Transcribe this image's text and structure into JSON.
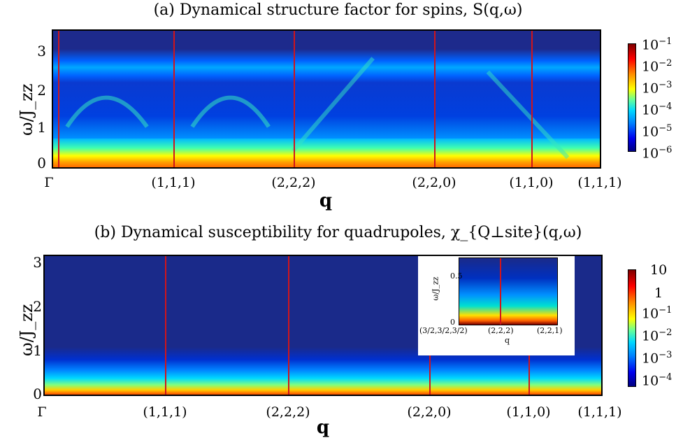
{
  "chart_data": [
    {
      "type": "heatmap",
      "title": "(a) Dynamical structure factor for spins, S(q,ω)",
      "xlabel": "q",
      "ylabel": "ω/J_zz",
      "x_ticks": [
        "Γ",
        "(1,1,1)",
        "(2,2,2)",
        "(2,2,0)",
        "(1,1,0)",
        "(1,1,1)"
      ],
      "y_ticks": [
        "0",
        "1",
        "2",
        "3"
      ],
      "ylim": [
        0,
        3.6
      ],
      "colorbar": {
        "scale": "log",
        "ticks": [
          "10^-1",
          "10^-2",
          "10^-3",
          "10^-4",
          "10^-5",
          "10^-6"
        ]
      },
      "band_features": [
        {
          "omega_low": 0,
          "omega_high": 0.5,
          "level": "high"
        },
        {
          "omega_low": 2.6,
          "omega_high": 3.2,
          "level": "medium"
        }
      ]
    },
    {
      "type": "heatmap",
      "title": "(b) Dynamical susceptibility for quadrupoles, χ_{Q⊥site}(q,ω)",
      "xlabel": "q",
      "ylabel": "ω/J_zz",
      "x_ticks": [
        "Γ",
        "(1,1,1)",
        "(2,2,2)",
        "(2,2,0)",
        "(1,1,0)",
        "(1,1,1)"
      ],
      "y_ticks": [
        "0",
        "1",
        "2",
        "3"
      ],
      "ylim": [
        0,
        3.1
      ],
      "colorbar": {
        "scale": "log",
        "ticks": [
          "10",
          "1",
          "10^-1",
          "10^-2",
          "10^-3",
          "10^-4"
        ]
      },
      "inset": {
        "ylabel": "ω/J_zz",
        "xlabel": "q",
        "x_ticks": [
          "(3/2,3/2,3/2)",
          "(2,2,2)",
          "(2,2,1)"
        ],
        "y_ticks": [
          "0",
          "0.5"
        ]
      }
    }
  ],
  "colors": {
    "line": "#d0141b",
    "background_map": "#1a237e"
  }
}
